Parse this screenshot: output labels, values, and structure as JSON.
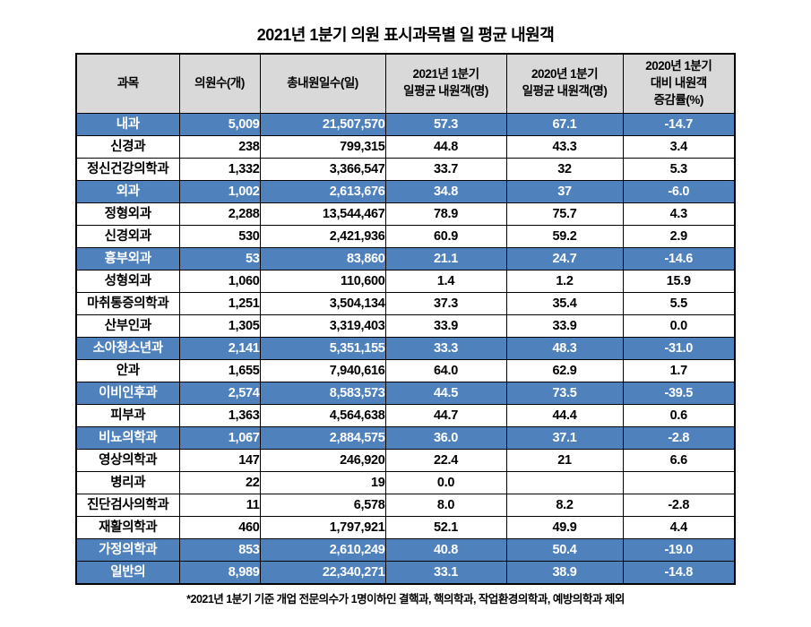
{
  "chart_data": {
    "type": "table",
    "title": "2021년 1분기 의원 표시과목별 일 평균 내원객",
    "footnote": "*2021년 1분기 기준 개업 전문의수가 1명이하인 결핵과, 핵의학과, 작업환경의학과, 예방의학과 제외",
    "columns": [
      "과목",
      "의원수(개)",
      "총내원일수(일)",
      "2021년 1분기\n일평균 내원객(명)",
      "2020년 1분기\n일평균 내원객(명)",
      "2020년 1분기\n대비 내원객\n증감률(%)"
    ],
    "rows": [
      {
        "name": "내과",
        "clinic_count": "5,009",
        "total_visit_days": "21,507,570",
        "daily_avg_2021": "57.3",
        "daily_avg_2020": "67.1",
        "change_rate": "-14.7",
        "highlight": true
      },
      {
        "name": "신경과",
        "clinic_count": "238",
        "total_visit_days": "799,315",
        "daily_avg_2021": "44.8",
        "daily_avg_2020": "43.3",
        "change_rate": "3.4",
        "highlight": false
      },
      {
        "name": "정신건강의학과",
        "clinic_count": "1,332",
        "total_visit_days": "3,366,547",
        "daily_avg_2021": "33.7",
        "daily_avg_2020": "32",
        "change_rate": "5.3",
        "highlight": false
      },
      {
        "name": "외과",
        "clinic_count": "1,002",
        "total_visit_days": "2,613,676",
        "daily_avg_2021": "34.8",
        "daily_avg_2020": "37",
        "change_rate": "-6.0",
        "highlight": true
      },
      {
        "name": "정형외과",
        "clinic_count": "2,288",
        "total_visit_days": "13,544,467",
        "daily_avg_2021": "78.9",
        "daily_avg_2020": "75.7",
        "change_rate": "4.3",
        "highlight": false
      },
      {
        "name": "신경외과",
        "clinic_count": "530",
        "total_visit_days": "2,421,936",
        "daily_avg_2021": "60.9",
        "daily_avg_2020": "59.2",
        "change_rate": "2.9",
        "highlight": false
      },
      {
        "name": "흉부외과",
        "clinic_count": "53",
        "total_visit_days": "83,860",
        "daily_avg_2021": "21.1",
        "daily_avg_2020": "24.7",
        "change_rate": "-14.6",
        "highlight": true
      },
      {
        "name": "성형외과",
        "clinic_count": "1,060",
        "total_visit_days": "110,600",
        "daily_avg_2021": "1.4",
        "daily_avg_2020": "1.2",
        "change_rate": "15.9",
        "highlight": false
      },
      {
        "name": "마취통증의학과",
        "clinic_count": "1,251",
        "total_visit_days": "3,504,134",
        "daily_avg_2021": "37.3",
        "daily_avg_2020": "35.4",
        "change_rate": "5.5",
        "highlight": false
      },
      {
        "name": "산부인과",
        "clinic_count": "1,305",
        "total_visit_days": "3,319,403",
        "daily_avg_2021": "33.9",
        "daily_avg_2020": "33.9",
        "change_rate": "0.0",
        "highlight": false
      },
      {
        "name": "소아청소년과",
        "clinic_count": "2,141",
        "total_visit_days": "5,351,155",
        "daily_avg_2021": "33.3",
        "daily_avg_2020": "48.3",
        "change_rate": "-31.0",
        "highlight": true
      },
      {
        "name": "안과",
        "clinic_count": "1,655",
        "total_visit_days": "7,940,616",
        "daily_avg_2021": "64.0",
        "daily_avg_2020": "62.9",
        "change_rate": "1.7",
        "highlight": false
      },
      {
        "name": "이비인후과",
        "clinic_count": "2,574",
        "total_visit_days": "8,583,573",
        "daily_avg_2021": "44.5",
        "daily_avg_2020": "73.5",
        "change_rate": "-39.5",
        "highlight": true
      },
      {
        "name": "피부과",
        "clinic_count": "1,363",
        "total_visit_days": "4,564,638",
        "daily_avg_2021": "44.7",
        "daily_avg_2020": "44.4",
        "change_rate": "0.6",
        "highlight": false
      },
      {
        "name": "비뇨의학과",
        "clinic_count": "1,067",
        "total_visit_days": "2,884,575",
        "daily_avg_2021": "36.0",
        "daily_avg_2020": "37.1",
        "change_rate": "-2.8",
        "highlight": true
      },
      {
        "name": "영상의학과",
        "clinic_count": "147",
        "total_visit_days": "246,920",
        "daily_avg_2021": "22.4",
        "daily_avg_2020": "21",
        "change_rate": "6.6",
        "highlight": false
      },
      {
        "name": "병리과",
        "clinic_count": "22",
        "total_visit_days": "19",
        "daily_avg_2021": "0.0",
        "daily_avg_2020": "",
        "change_rate": "",
        "highlight": false
      },
      {
        "name": "진단검사의학과",
        "clinic_count": "11",
        "total_visit_days": "6,578",
        "daily_avg_2021": "8.0",
        "daily_avg_2020": "8.2",
        "change_rate": "-2.8",
        "highlight": false
      },
      {
        "name": "재활의학과",
        "clinic_count": "460",
        "total_visit_days": "1,797,921",
        "daily_avg_2021": "52.1",
        "daily_avg_2020": "49.9",
        "change_rate": "4.4",
        "highlight": false
      },
      {
        "name": "가정의학과",
        "clinic_count": "853",
        "total_visit_days": "2,610,249",
        "daily_avg_2021": "40.8",
        "daily_avg_2020": "50.4",
        "change_rate": "-19.0",
        "highlight": true
      },
      {
        "name": "일반의",
        "clinic_count": "8,989",
        "total_visit_days": "22,340,271",
        "daily_avg_2021": "33.1",
        "daily_avg_2020": "38.9",
        "change_rate": "-14.8",
        "highlight": true
      }
    ],
    "layout_hints": {
      "highlight_row_bg": "#4f81bd",
      "highlight_row_text": "#ffffff",
      "header_bg": "#d9d9d9",
      "border_color": "#000000",
      "grid": true
    }
  }
}
